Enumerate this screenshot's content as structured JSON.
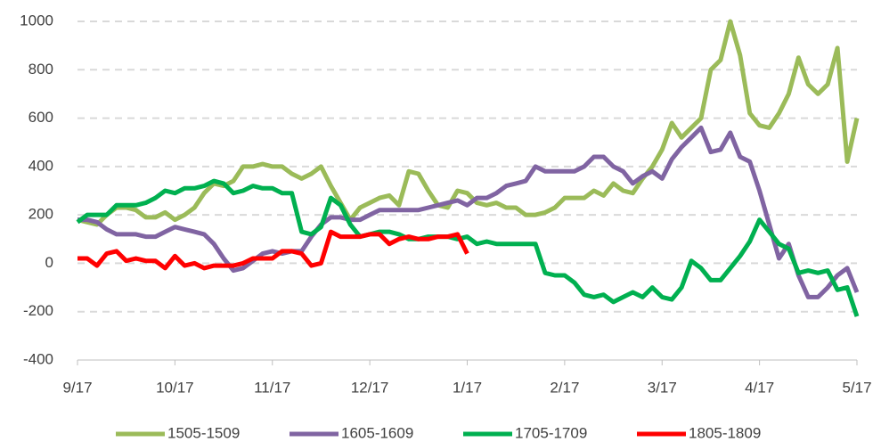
{
  "chart_data": {
    "type": "line",
    "categories": [
      "9/17",
      null,
      null,
      null,
      null,
      null,
      null,
      null,
      null,
      null,
      "10/17",
      null,
      null,
      null,
      null,
      null,
      null,
      null,
      null,
      null,
      "11/17",
      null,
      null,
      null,
      null,
      null,
      null,
      null,
      null,
      null,
      "12/17",
      null,
      null,
      null,
      null,
      null,
      null,
      null,
      null,
      null,
      "1/17",
      null,
      null,
      null,
      null,
      null,
      null,
      null,
      null,
      null,
      "2/17",
      null,
      null,
      null,
      null,
      null,
      null,
      null,
      null,
      null,
      "3/17",
      null,
      null,
      null,
      null,
      null,
      null,
      null,
      null,
      null,
      "4/17",
      null,
      null,
      null,
      null,
      null,
      null,
      null,
      null,
      null,
      "5/17"
    ],
    "series": [
      {
        "name": "1505-1509",
        "color": "#9bbb59",
        "values": [
          180,
          170,
          160,
          200,
          230,
          230,
          220,
          190,
          190,
          210,
          180,
          200,
          230,
          290,
          330,
          320,
          340,
          400,
          400,
          410,
          400,
          400,
          370,
          350,
          370,
          400,
          320,
          250,
          180,
          230,
          250,
          270,
          280,
          240,
          380,
          370,
          300,
          240,
          230,
          300,
          290,
          250,
          240,
          250,
          230,
          230,
          200,
          200,
          210,
          230,
          270,
          270,
          270,
          300,
          280,
          330,
          300,
          290,
          350,
          400,
          470,
          580,
          520,
          560,
          600,
          800,
          840,
          1000,
          860,
          620,
          570,
          560,
          620,
          700,
          850,
          740,
          700,
          740,
          890,
          420,
          600
        ]
      },
      {
        "name": "1605-1609",
        "color": "#8064a2",
        "values": [
          180,
          180,
          170,
          140,
          120,
          120,
          120,
          110,
          110,
          130,
          150,
          140,
          130,
          120,
          80,
          20,
          -30,
          -20,
          10,
          40,
          50,
          40,
          50,
          50,
          110,
          160,
          190,
          190,
          180,
          180,
          200,
          220,
          220,
          220,
          220,
          220,
          230,
          240,
          250,
          260,
          240,
          270,
          270,
          290,
          320,
          330,
          340,
          400,
          380,
          380,
          380,
          380,
          400,
          440,
          440,
          400,
          380,
          330,
          360,
          380,
          350,
          430,
          480,
          520,
          560,
          460,
          470,
          540,
          440,
          420,
          300,
          160,
          20,
          80,
          -50,
          -140,
          -140,
          -100,
          -50,
          -20,
          -120
        ]
      },
      {
        "name": "1705-1709",
        "color": "#00b050",
        "values": [
          170,
          200,
          200,
          200,
          240,
          240,
          240,
          250,
          270,
          300,
          290,
          310,
          310,
          320,
          340,
          330,
          290,
          300,
          320,
          310,
          310,
          290,
          290,
          130,
          120,
          150,
          270,
          240,
          160,
          110,
          120,
          130,
          130,
          120,
          100,
          100,
          110,
          110,
          110,
          100,
          110,
          80,
          90,
          80,
          80,
          80,
          80,
          80,
          -40,
          -50,
          -50,
          -80,
          -130,
          -140,
          -130,
          -160,
          -140,
          -120,
          -140,
          -100,
          -140,
          -150,
          -100,
          10,
          -20,
          -70,
          -70,
          -20,
          30,
          90,
          180,
          130,
          80,
          60,
          -40,
          -30,
          -40,
          -30,
          -110,
          -100,
          -220
        ]
      },
      {
        "name": "1805-1809",
        "color": "#ff0000",
        "values": [
          20,
          20,
          -10,
          40,
          50,
          10,
          20,
          10,
          10,
          -20,
          30,
          -10,
          0,
          -20,
          -10,
          -10,
          -10,
          0,
          20,
          20,
          20,
          50,
          50,
          40,
          -10,
          0,
          130,
          110,
          110,
          110,
          120,
          120,
          80,
          100,
          110,
          100,
          100,
          110,
          110,
          120,
          40,
          null,
          null,
          null,
          null,
          null,
          null,
          null,
          null,
          null,
          null,
          null,
          null,
          null,
          null,
          null,
          null,
          null,
          null,
          null,
          null,
          null,
          null,
          null,
          null,
          null,
          null,
          null,
          null,
          null,
          null,
          null,
          null,
          null,
          null,
          null,
          null,
          null,
          null,
          null,
          null
        ]
      }
    ],
    "ylim": [
      -400,
      1000
    ],
    "yticks": [
      -400,
      -200,
      0,
      200,
      400,
      600,
      800,
      1000
    ],
    "grid": true,
    "legend": "bottom"
  }
}
